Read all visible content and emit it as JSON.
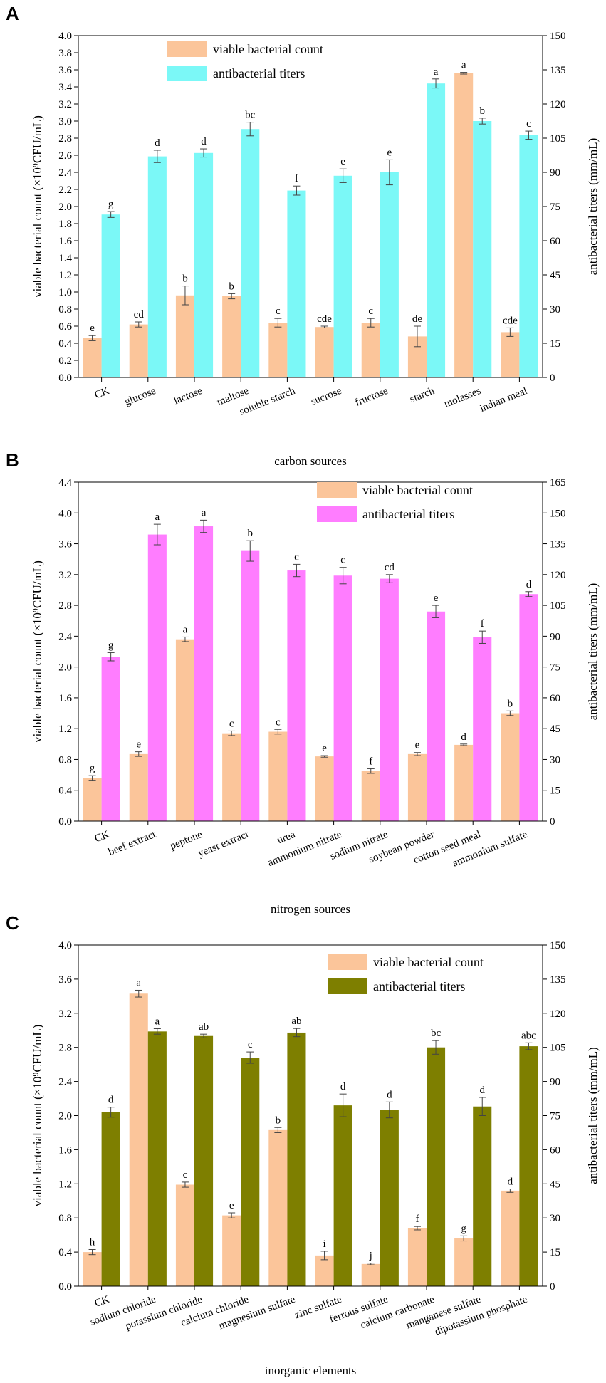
{
  "chart_data": [
    {
      "type": "bar",
      "panel": "A",
      "xlabel": "carbon sources",
      "ylabel_left": "viable bacterial count (×10⁹CFU/mL)",
      "ylabel_right": "antibacterial titers (mm/mL)",
      "ylim_left": [
        0,
        4.0
      ],
      "ylim_right": [
        0,
        150
      ],
      "yticks_left": [
        "0.0",
        "0.2",
        "0.4",
        "0.6",
        "0.8",
        "1.0",
        "1.2",
        "1.4",
        "1.6",
        "1.8",
        "2.0",
        "2.2",
        "2.4",
        "2.6",
        "2.8",
        "3.0",
        "3.2",
        "3.4",
        "3.6",
        "3.8",
        "4.0"
      ],
      "yticks_right": [
        "0",
        "15",
        "30",
        "45",
        "60",
        "75",
        "90",
        "105",
        "120",
        "135",
        "150"
      ],
      "categories": [
        "CK",
        "glucose",
        "lactose",
        "maltose",
        "soluble starch",
        "sucrose",
        "fructose",
        "starch",
        "molasses",
        "indian meal"
      ],
      "legend_position": "top-center",
      "series": [
        {
          "name": "viable bacterial count",
          "axis": "left",
          "color": "#FBC59A",
          "values": [
            0.46,
            0.62,
            0.96,
            0.95,
            0.64,
            0.59,
            0.64,
            0.48,
            3.56,
            0.53
          ],
          "errors": [
            0.03,
            0.03,
            0.11,
            0.03,
            0.05,
            0.01,
            0.05,
            0.12,
            0.01,
            0.05
          ],
          "labels": [
            "e",
            "cd",
            "b",
            "b",
            "c",
            "cde",
            "c",
            "de",
            "a",
            "cde"
          ]
        },
        {
          "name": "antibacterial titers",
          "axis": "right",
          "color": "#7BF8F7",
          "values": [
            71.5,
            97,
            98.5,
            109,
            82,
            88.5,
            90,
            129,
            112.5,
            106.3
          ],
          "errors": [
            1.3,
            2.7,
            1.8,
            3.0,
            2.0,
            3.0,
            5.5,
            2.0,
            1.3,
            1.8
          ],
          "labels": [
            "g",
            "d",
            "d",
            "bc",
            "f",
            "e",
            "e",
            "a",
            "b",
            "c"
          ]
        }
      ]
    },
    {
      "type": "bar",
      "panel": "B",
      "xlabel": "nitrogen sources",
      "ylabel_left": "viable bacterial count (×10⁹CFU/mL)",
      "ylabel_right": "antibacterial titers (mm/mL)",
      "ylim_left": [
        0,
        4.4
      ],
      "ylim_right": [
        0,
        165
      ],
      "yticks_left": [
        "0.0",
        "0.4",
        "0.8",
        "1.2",
        "1.6",
        "2.0",
        "2.4",
        "2.8",
        "3.2",
        "3.6",
        "4.0",
        "4.4"
      ],
      "yticks_right": [
        "0",
        "15",
        "30",
        "45",
        "60",
        "75",
        "90",
        "105",
        "120",
        "135",
        "150",
        "165"
      ],
      "categories": [
        "CK",
        "beef extract",
        "peptone",
        "yeast extract",
        "urea",
        "ammonium nitrate",
        "sodium nitrate",
        "soybean powder",
        "cotton seed meal",
        "ammonium sulfate"
      ],
      "legend_position": "top-right",
      "series": [
        {
          "name": "viable bacterial count",
          "axis": "left",
          "color": "#FBC59A",
          "values": [
            0.56,
            0.87,
            2.36,
            1.14,
            1.16,
            0.84,
            0.65,
            0.87,
            0.99,
            1.4
          ],
          "errors": [
            0.03,
            0.03,
            0.03,
            0.03,
            0.03,
            0.01,
            0.03,
            0.02,
            0.01,
            0.03
          ],
          "labels": [
            "g",
            "e",
            "a",
            "c",
            "c",
            "e",
            "f",
            "e",
            "d",
            "b"
          ]
        },
        {
          "name": "antibacterial titers",
          "axis": "right",
          "color": "#FF7DFF",
          "values": [
            80,
            139.5,
            143.5,
            131.5,
            122,
            119.5,
            118,
            102,
            89.5,
            110.5
          ],
          "errors": [
            2.0,
            5.0,
            3.0,
            5.0,
            3.0,
            4.0,
            2.0,
            3.0,
            3.0,
            1.2
          ],
          "labels": [
            "g",
            "a",
            "a",
            "b",
            "c",
            "c",
            "cd",
            "e",
            "f",
            "d"
          ]
        }
      ]
    },
    {
      "type": "bar",
      "panel": "C",
      "xlabel": "inorganic elements",
      "ylabel_left": "viable bacterial count (×10⁹CFU/mL)",
      "ylabel_right": "antibacterial titers (mm/mL)",
      "ylim_left": [
        0,
        4.0
      ],
      "ylim_right": [
        0,
        150
      ],
      "yticks_left": [
        "0.0",
        "0.4",
        "0.8",
        "1.2",
        "1.6",
        "2.0",
        "2.4",
        "2.8",
        "3.2",
        "3.6",
        "4.0"
      ],
      "yticks_right": [
        "0",
        "15",
        "30",
        "45",
        "60",
        "75",
        "90",
        "105",
        "120",
        "135",
        "150"
      ],
      "categories": [
        "CK",
        "sodium chloride",
        "potassium chloride",
        "calcium chloride",
        "magnesium sulfate",
        "zinc sulfate",
        "ferrous sulfate",
        "calcium carbonate",
        "manganese sulfate",
        "dipotassium phosphate"
      ],
      "legend_position": "top-right",
      "series": [
        {
          "name": "viable bacterial count",
          "axis": "left",
          "color": "#FBC59A",
          "values": [
            0.4,
            3.43,
            1.19,
            0.83,
            1.83,
            0.36,
            0.26,
            0.68,
            0.56,
            1.12
          ],
          "errors": [
            0.03,
            0.04,
            0.03,
            0.03,
            0.03,
            0.05,
            0.01,
            0.02,
            0.03,
            0.02
          ],
          "labels": [
            "h",
            "a",
            "c",
            "e",
            "b",
            "i",
            "j",
            "f",
            "g",
            "d"
          ]
        },
        {
          "name": "antibacterial titers",
          "axis": "right",
          "color": "#7E7F00",
          "values": [
            76.5,
            112,
            110,
            100.5,
            111.5,
            79.5,
            77.5,
            105,
            79,
            105.5
          ],
          "errors": [
            2.2,
            1.2,
            0.8,
            2.5,
            1.8,
            5.0,
            3.5,
            3.0,
            4.0,
            1.5
          ],
          "labels": [
            "d",
            "a",
            "ab",
            "c",
            "ab",
            "d",
            "d",
            "bc",
            "d",
            "abc"
          ]
        }
      ]
    }
  ]
}
